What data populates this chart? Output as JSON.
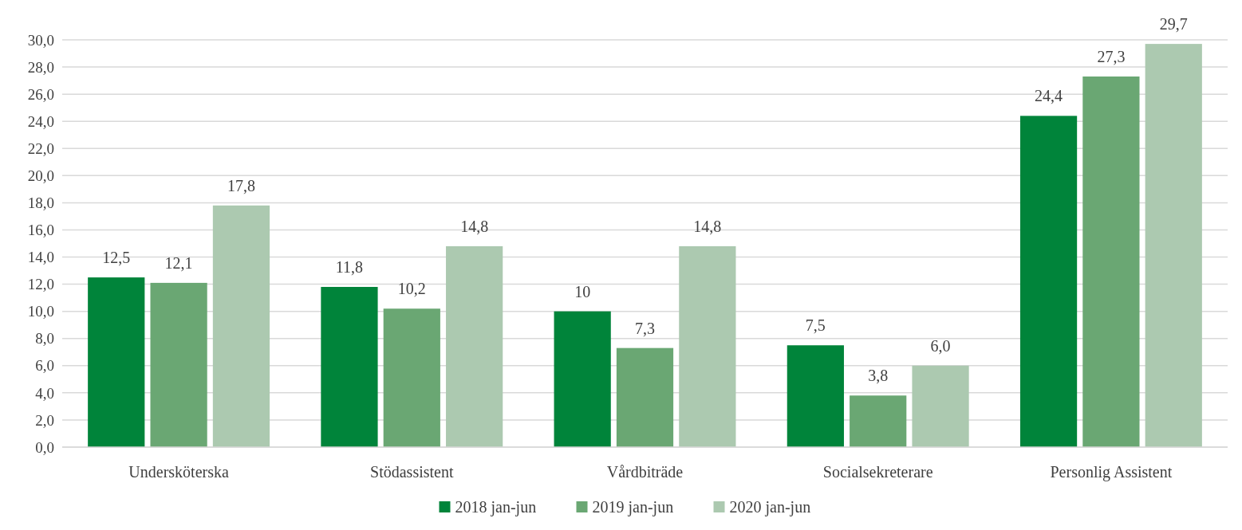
{
  "chart_data": {
    "type": "bar",
    "categories": [
      "Undersköterska",
      "Stödassistent",
      "Vårdbiträde",
      "Socialsekreterare",
      "Personlig Assistent"
    ],
    "series": [
      {
        "name": "2018 jan-jun",
        "color": "#00843a",
        "values": [
          12.5,
          11.8,
          10,
          7.5,
          24.4
        ],
        "value_labels": [
          "12,5",
          "11,8",
          "10",
          "7,5",
          "24,4"
        ]
      },
      {
        "name": "2019 jan-jun",
        "color": "#6aa773",
        "values": [
          12.1,
          10.2,
          7.3,
          3.8,
          27.3
        ],
        "value_labels": [
          "12,1",
          "10,2",
          "7,3",
          "3,8",
          "27,3"
        ]
      },
      {
        "name": "2020 jan-jun",
        "color": "#acc9b0",
        "values": [
          17.8,
          14.8,
          14.8,
          6.0,
          29.7
        ],
        "value_labels": [
          "17,8",
          "14,8",
          "14,8",
          "6,0",
          "29,7"
        ]
      }
    ],
    "ylim": [
      0,
      30
    ],
    "yticks": [
      {
        "value": 0,
        "label": "0,0"
      },
      {
        "value": 2,
        "label": "2,0"
      },
      {
        "value": 4,
        "label": "4,0"
      },
      {
        "value": 6,
        "label": "6,0"
      },
      {
        "value": 8,
        "label": "8,0"
      },
      {
        "value": 10,
        "label": "10,0"
      },
      {
        "value": 12,
        "label": "12,0"
      },
      {
        "value": 14,
        "label": "14,0"
      },
      {
        "value": 16,
        "label": "16,0"
      },
      {
        "value": 18,
        "label": "18,0"
      },
      {
        "value": 20,
        "label": "20,0"
      },
      {
        "value": 22,
        "label": "22,0"
      },
      {
        "value": 24,
        "label": "24,0"
      },
      {
        "value": 26,
        "label": "26,0"
      },
      {
        "value": 28,
        "label": "28,0"
      },
      {
        "value": 30,
        "label": "30,0"
      }
    ],
    "grid": "y",
    "legend": "bottom"
  }
}
